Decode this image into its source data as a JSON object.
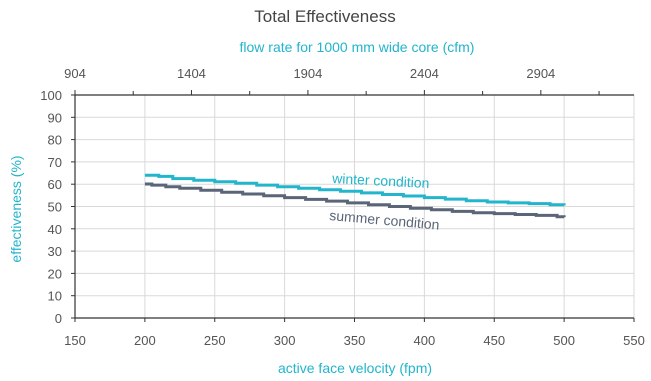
{
  "colors": {
    "winter": "#22b5cc",
    "summer": "#5a6578",
    "axis_title": "#22b5cc",
    "grid": "#d9d9d9",
    "axis": "#333333",
    "tick_text": "#555555"
  },
  "chart_data": {
    "type": "line",
    "title": "Total Effectiveness",
    "xlabel": "active face velocity (fpm)",
    "ylabel": "effectiveness (%)",
    "top_xlabel": "flow  rate  for 1000 mm wide core (cfm)",
    "xlim": [
      150,
      550
    ],
    "ylim": [
      0,
      100
    ],
    "xticks": [
      150,
      200,
      250,
      300,
      350,
      400,
      450,
      500,
      550
    ],
    "yticks": [
      0,
      10,
      20,
      30,
      40,
      50,
      60,
      70,
      80,
      90,
      100
    ],
    "top_ticks": [
      {
        "value": "904",
        "x": 150
      },
      {
        "value": "1404",
        "x": 233.33
      },
      {
        "value": "1904",
        "x": 316.67
      },
      {
        "value": "2404",
        "x": 400
      },
      {
        "value": "2904",
        "x": 483.33
      }
    ],
    "grid": true,
    "line_style": "step",
    "series": [
      {
        "name": "winter condition",
        "key": "winter",
        "x": [
          200,
          210,
          220,
          235,
          250,
          265,
          280,
          295,
          310,
          325,
          340,
          355,
          370,
          385,
          400,
          415,
          430,
          445,
          460,
          475,
          490,
          500
        ],
        "y": [
          64,
          63.5,
          62.5,
          61.8,
          61.1,
          60.4,
          59.6,
          58.9,
          58.2,
          57.5,
          56.8,
          56.1,
          55.4,
          54.7,
          54.0,
          53.3,
          52.6,
          52.0,
          51.6,
          51.3,
          50.8,
          50.5
        ]
      },
      {
        "name": "summer condition",
        "key": "summer",
        "x": [
          200,
          205,
          215,
          225,
          240,
          255,
          270,
          285,
          300,
          315,
          330,
          345,
          360,
          375,
          390,
          405,
          420,
          435,
          450,
          465,
          480,
          495,
          500
        ],
        "y": [
          60.1,
          59.6,
          58.9,
          58.2,
          57.3,
          56.4,
          55.6,
          54.8,
          54.0,
          53.2,
          52.4,
          51.6,
          50.8,
          50.0,
          49.2,
          48.5,
          47.8,
          47.2,
          46.8,
          46.4,
          46.0,
          45.4,
          45.2
        ]
      }
    ]
  }
}
